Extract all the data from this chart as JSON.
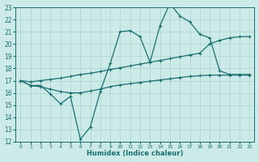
{
  "xlabel": "Humidex (Indice chaleur)",
  "ylabel": "",
  "bg_color": "#cceae8",
  "grid_color": "#aad4d0",
  "line_color": "#1a7070",
  "xlim": [
    -0.5,
    23.5
  ],
  "ylim": [
    12,
    23
  ],
  "xticks": [
    0,
    1,
    2,
    3,
    4,
    5,
    6,
    7,
    8,
    9,
    10,
    11,
    12,
    13,
    14,
    15,
    16,
    17,
    18,
    19,
    20,
    21,
    22,
    23
  ],
  "yticks": [
    12,
    13,
    14,
    15,
    16,
    17,
    18,
    19,
    20,
    21,
    22,
    23
  ],
  "line1_x": [
    0,
    1,
    2,
    3,
    4,
    5,
    6,
    7,
    8,
    9,
    10,
    11,
    12,
    13,
    14,
    15,
    16,
    17,
    18,
    19,
    20,
    21,
    22,
    23
  ],
  "line1_y": [
    17.0,
    16.6,
    16.6,
    15.9,
    15.1,
    15.7,
    12.2,
    13.2,
    16.1,
    18.4,
    21.0,
    21.1,
    20.6,
    18.5,
    21.5,
    23.3,
    22.3,
    21.8,
    20.8,
    20.5,
    17.8,
    17.5,
    17.5,
    17.5
  ],
  "line2_x": [
    0,
    1,
    2,
    3,
    4,
    5,
    6,
    7,
    8,
    9,
    10,
    11,
    12,
    13,
    14,
    15,
    16,
    17,
    18,
    19,
    20,
    21,
    22,
    23
  ],
  "line2_y": [
    17.0,
    16.9,
    17.0,
    17.1,
    17.2,
    17.35,
    17.5,
    17.6,
    17.75,
    17.9,
    18.05,
    18.2,
    18.35,
    18.5,
    18.65,
    18.8,
    18.95,
    19.1,
    19.25,
    20.0,
    20.3,
    20.5,
    20.6,
    20.6
  ],
  "line3_x": [
    0,
    1,
    2,
    3,
    4,
    5,
    6,
    7,
    8,
    9,
    10,
    11,
    12,
    13,
    14,
    15,
    16,
    17,
    18,
    19,
    20,
    21,
    22,
    23
  ],
  "line3_y": [
    17.0,
    16.6,
    16.5,
    16.3,
    16.1,
    16.0,
    16.0,
    16.15,
    16.3,
    16.5,
    16.65,
    16.75,
    16.85,
    16.95,
    17.05,
    17.15,
    17.25,
    17.35,
    17.4,
    17.45,
    17.45,
    17.45,
    17.45,
    17.45
  ],
  "marker": "+",
  "markersize": 3,
  "linewidth": 0.9
}
